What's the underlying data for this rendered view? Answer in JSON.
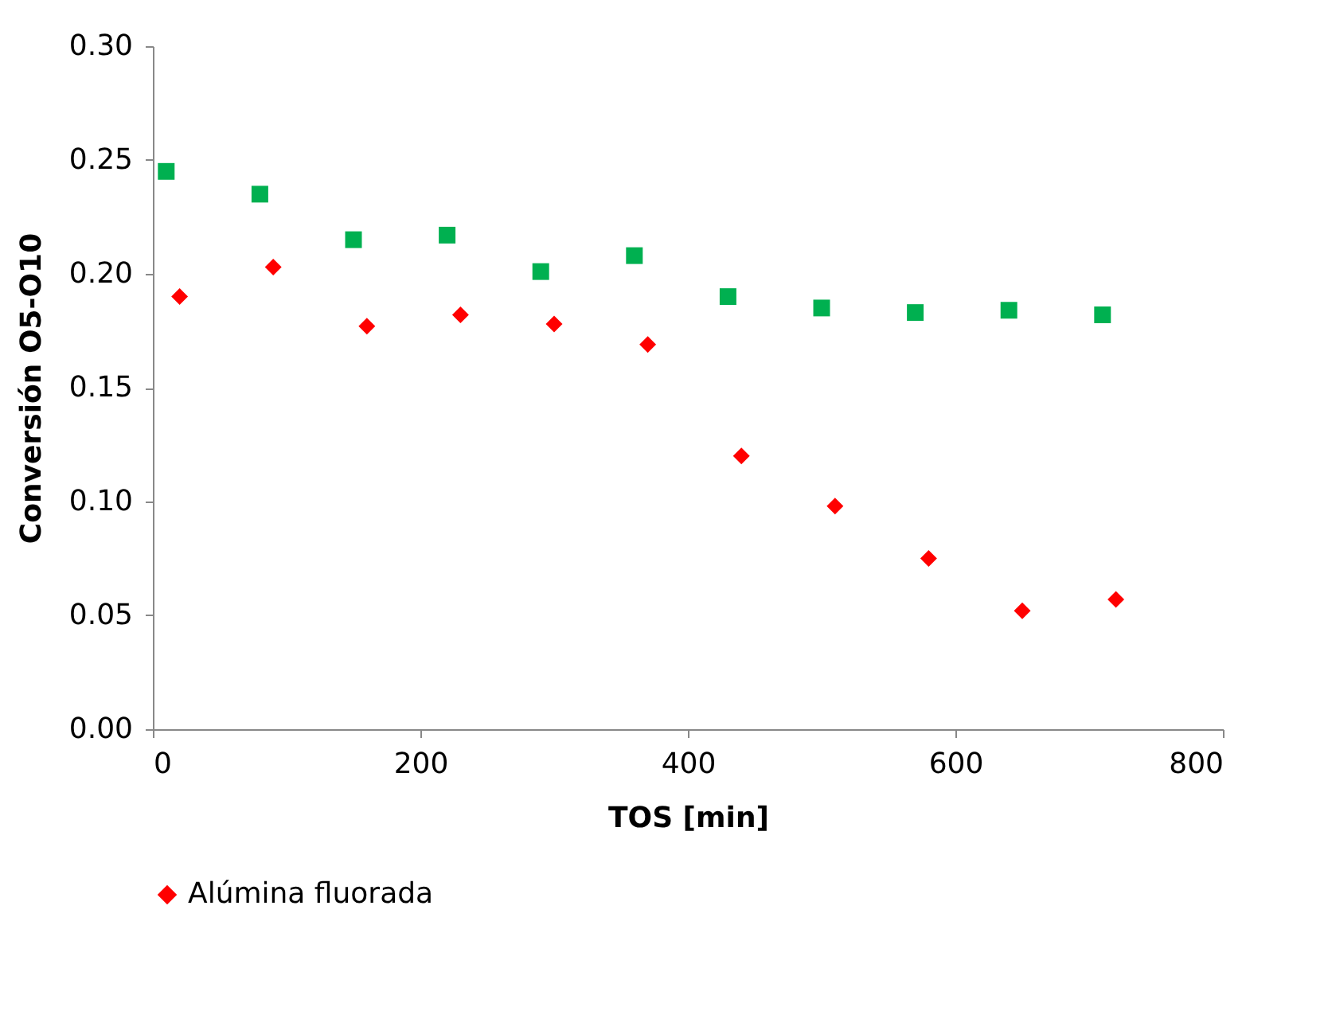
{
  "chart_data": {
    "type": "scatter",
    "xlabel": "TOS [min]",
    "ylabel": "Conversión O5-O10",
    "xlim": [
      0,
      800
    ],
    "xticks": [
      0,
      200,
      400,
      600,
      800
    ],
    "ylim": [
      0,
      0.3
    ],
    "yticks": [
      {
        "value": 0,
        "label": "0.00"
      },
      {
        "value": 0.05,
        "label": "0.05"
      },
      {
        "value": 0.1,
        "label": "0.10"
      },
      {
        "value": 0.15,
        "label": "0.15"
      },
      {
        "value": 0.2,
        "label": "0.20"
      },
      {
        "value": 0.25,
        "label": "0.25"
      },
      {
        "value": 0.3,
        "label": "0.30"
      }
    ],
    "grid": false,
    "legend": "bottom",
    "series": [
      {
        "name": "Alúmina fluorada",
        "color": "#ff0000",
        "marker": "diamond",
        "x": [
          20,
          90,
          160,
          230,
          300,
          370,
          440,
          510,
          580,
          650,
          720
        ],
        "values": [
          0.19,
          0.203,
          0.177,
          0.182,
          0.178,
          0.169,
          0.12,
          0.098,
          0.075,
          0.052,
          0.057
        ]
      },
      {
        "color": "#00b050",
        "marker": "square",
        "x": [
          10,
          80,
          150,
          220,
          290,
          360,
          430,
          500,
          570,
          640,
          710
        ],
        "values": [
          0.245,
          0.235,
          0.215,
          0.217,
          0.201,
          0.208,
          0.19,
          0.185,
          0.183,
          0.184,
          0.182
        ]
      }
    ]
  }
}
